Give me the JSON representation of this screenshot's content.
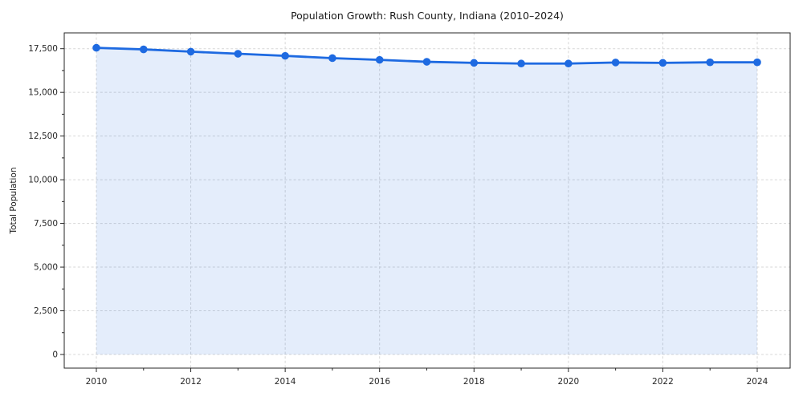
{
  "chart_data": {
    "type": "area",
    "title": "Population Growth: Rush County, Indiana (2010–2024)",
    "xlabel": "",
    "ylabel": "Total Population",
    "x": [
      2010,
      2011,
      2012,
      2013,
      2014,
      2015,
      2016,
      2017,
      2018,
      2019,
      2020,
      2021,
      2022,
      2023,
      2024
    ],
    "values": [
      17550,
      17460,
      17330,
      17210,
      17090,
      16960,
      16860,
      16750,
      16690,
      16650,
      16650,
      16710,
      16690,
      16720,
      16720
    ],
    "series": [
      {
        "name": "Total Population",
        "values": [
          17550,
          17460,
          17330,
          17210,
          17090,
          16960,
          16860,
          16750,
          16690,
          16650,
          16650,
          16710,
          16690,
          16720,
          16720
        ]
      }
    ],
    "xlim": [
      2009.3,
      2024.7
    ],
    "ylim": [
      -780,
      18320
    ],
    "grid": true,
    "legend_position": "none",
    "marker": "circle",
    "xticks": {
      "major": [
        2010,
        2012,
        2014,
        2016,
        2018,
        2020,
        2022,
        2024
      ],
      "labels": [
        "2010",
        "2012",
        "2014",
        "2016",
        "2018",
        "2020",
        "2022",
        "2024"
      ],
      "minor": [
        2011,
        2013,
        2015,
        2017,
        2019,
        2021,
        2023
      ]
    },
    "yticks": {
      "values": [
        0,
        2500,
        5000,
        7500,
        10000,
        12500,
        15000,
        17500
      ],
      "labels": [
        "0",
        "2,500",
        "5,000",
        "7,500",
        "10,000",
        "12,500",
        "15,000",
        "17,500"
      ],
      "minor_step": 1250
    },
    "colors": {
      "line": "#1e6ae1",
      "fill": "rgba(30, 106, 225, 0.12)",
      "grid": "#d7d7d7",
      "axis": "#262626",
      "background": "#ffffff"
    }
  }
}
